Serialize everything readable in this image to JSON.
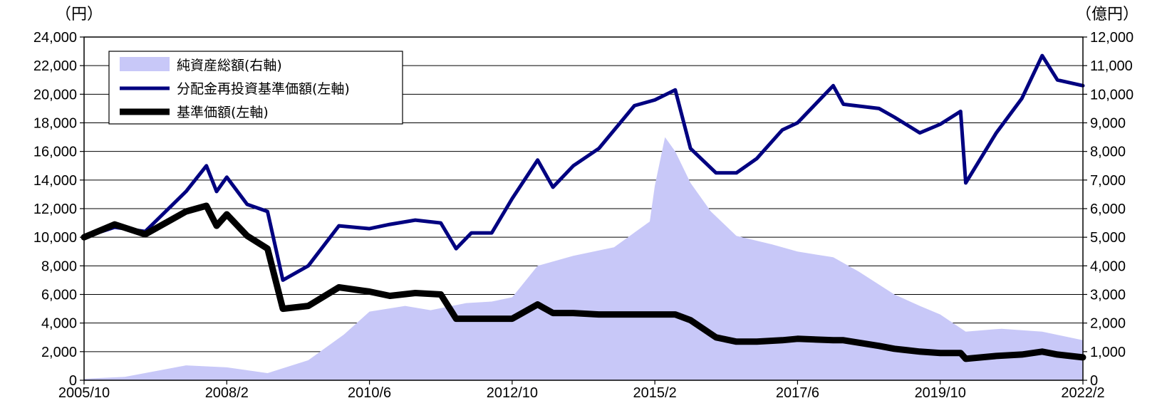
{
  "chart_data": {
    "type": "line",
    "left_unit": "（円）",
    "right_unit": "（億円）",
    "x_ticks": [
      "2005/10",
      "2008/2",
      "2010/6",
      "2012/10",
      "2015/2",
      "2017/6",
      "2019/10",
      "2022/2"
    ],
    "left_axis": {
      "min": 0,
      "max": 24000,
      "step": 2000,
      "ticks": [
        "0",
        "2,000",
        "4,000",
        "6,000",
        "8,000",
        "10,000",
        "12,000",
        "14,000",
        "16,000",
        "18,000",
        "20,000",
        "22,000",
        "24,000"
      ]
    },
    "right_axis": {
      "min": 0,
      "max": 12000,
      "step": 1000,
      "ticks": [
        "0",
        "1,000",
        "2,000",
        "3,000",
        "4,000",
        "5,000",
        "6,000",
        "7,000",
        "8,000",
        "9,000",
        "10,000",
        "11,000",
        "12,000"
      ]
    },
    "grid": true,
    "legend_position": "top-left",
    "colors": {
      "net_assets": "#c8c8f8",
      "reinvested": "#000080",
      "nav": "#000000"
    },
    "series": [
      {
        "name": "純資産総額(右軸)",
        "axis": "right",
        "kind": "area",
        "x": [
          "2005/10",
          "2006/6",
          "2007/1",
          "2007/6",
          "2008/2",
          "2008/10",
          "2009/6",
          "2010/1",
          "2010/6",
          "2011/1",
          "2011/6",
          "2012/1",
          "2012/6",
          "2012/10",
          "2013/3",
          "2013/10",
          "2014/6",
          "2015/1",
          "2015/2",
          "2015/4",
          "2015/6",
          "2015/9",
          "2016/1",
          "2016/6",
          "2017/1",
          "2017/6",
          "2018/1",
          "2018/6",
          "2019/1",
          "2019/6",
          "2019/10",
          "2020/3",
          "2020/10",
          "2021/6",
          "2022/2"
        ],
        "values": [
          50,
          120,
          350,
          520,
          450,
          250,
          700,
          1600,
          2400,
          2600,
          2450,
          2700,
          2750,
          2900,
          4000,
          4350,
          4650,
          5550,
          6800,
          8500,
          8000,
          6900,
          5900,
          5050,
          4750,
          4500,
          4300,
          3800,
          3000,
          2600,
          2300,
          1700,
          1800,
          1700,
          1400
        ]
      },
      {
        "name": "分配金再投資基準価額(左軸)",
        "axis": "left",
        "kind": "line",
        "x": [
          "2005/10",
          "2006/4",
          "2006/10",
          "2007/6",
          "2007/10",
          "2007/12",
          "2008/2",
          "2008/6",
          "2008/10",
          "2009/1",
          "2009/6",
          "2009/12",
          "2010/6",
          "2010/10",
          "2011/3",
          "2011/8",
          "2011/11",
          "2012/2",
          "2012/6",
          "2012/10",
          "2013/3",
          "2013/6",
          "2013/10",
          "2014/3",
          "2014/10",
          "2015/2",
          "2015/6",
          "2015/9",
          "2016/2",
          "2016/6",
          "2016/10",
          "2017/3",
          "2017/6",
          "2018/1",
          "2018/3",
          "2018/10",
          "2019/1",
          "2019/6",
          "2019/10",
          "2020/2",
          "2020/3",
          "2020/9",
          "2021/2",
          "2021/6",
          "2021/9",
          "2022/2"
        ],
        "values": [
          10000,
          10700,
          10400,
          13200,
          15000,
          13200,
          14200,
          12300,
          11800,
          7000,
          8000,
          10800,
          10600,
          10900,
          11200,
          11000,
          9200,
          10300,
          10300,
          12700,
          15400,
          13500,
          15000,
          16200,
          19200,
          19600,
          20300,
          16200,
          14500,
          14500,
          15500,
          17500,
          18000,
          20600,
          19300,
          19000,
          18400,
          17300,
          17900,
          18800,
          13800,
          17300,
          19700,
          22700,
          21000,
          20600
        ]
      },
      {
        "name": "基準価額(左軸)",
        "axis": "left",
        "kind": "line",
        "x": [
          "2005/10",
          "2006/4",
          "2006/10",
          "2007/6",
          "2007/10",
          "2007/12",
          "2008/2",
          "2008/6",
          "2008/10",
          "2009/1",
          "2009/6",
          "2009/12",
          "2010/6",
          "2010/10",
          "2011/3",
          "2011/8",
          "2011/11",
          "2012/2",
          "2012/6",
          "2012/10",
          "2013/3",
          "2013/6",
          "2013/10",
          "2014/3",
          "2014/10",
          "2015/2",
          "2015/6",
          "2015/9",
          "2016/2",
          "2016/6",
          "2016/10",
          "2017/3",
          "2017/6",
          "2018/1",
          "2018/3",
          "2018/10",
          "2019/1",
          "2019/6",
          "2019/10",
          "2020/2",
          "2020/3",
          "2020/9",
          "2021/2",
          "2021/6",
          "2021/9",
          "2022/2"
        ],
        "values": [
          10000,
          10900,
          10200,
          11800,
          12200,
          10800,
          11600,
          10100,
          9200,
          5000,
          5200,
          6500,
          6200,
          5900,
          6100,
          6000,
          4300,
          4300,
          4300,
          4300,
          5300,
          4700,
          4700,
          4600,
          4600,
          4600,
          4600,
          4200,
          3000,
          2700,
          2700,
          2800,
          2900,
          2800,
          2800,
          2400,
          2200,
          2000,
          1900,
          1900,
          1500,
          1700,
          1800,
          2000,
          1800,
          1600
        ]
      }
    ]
  }
}
